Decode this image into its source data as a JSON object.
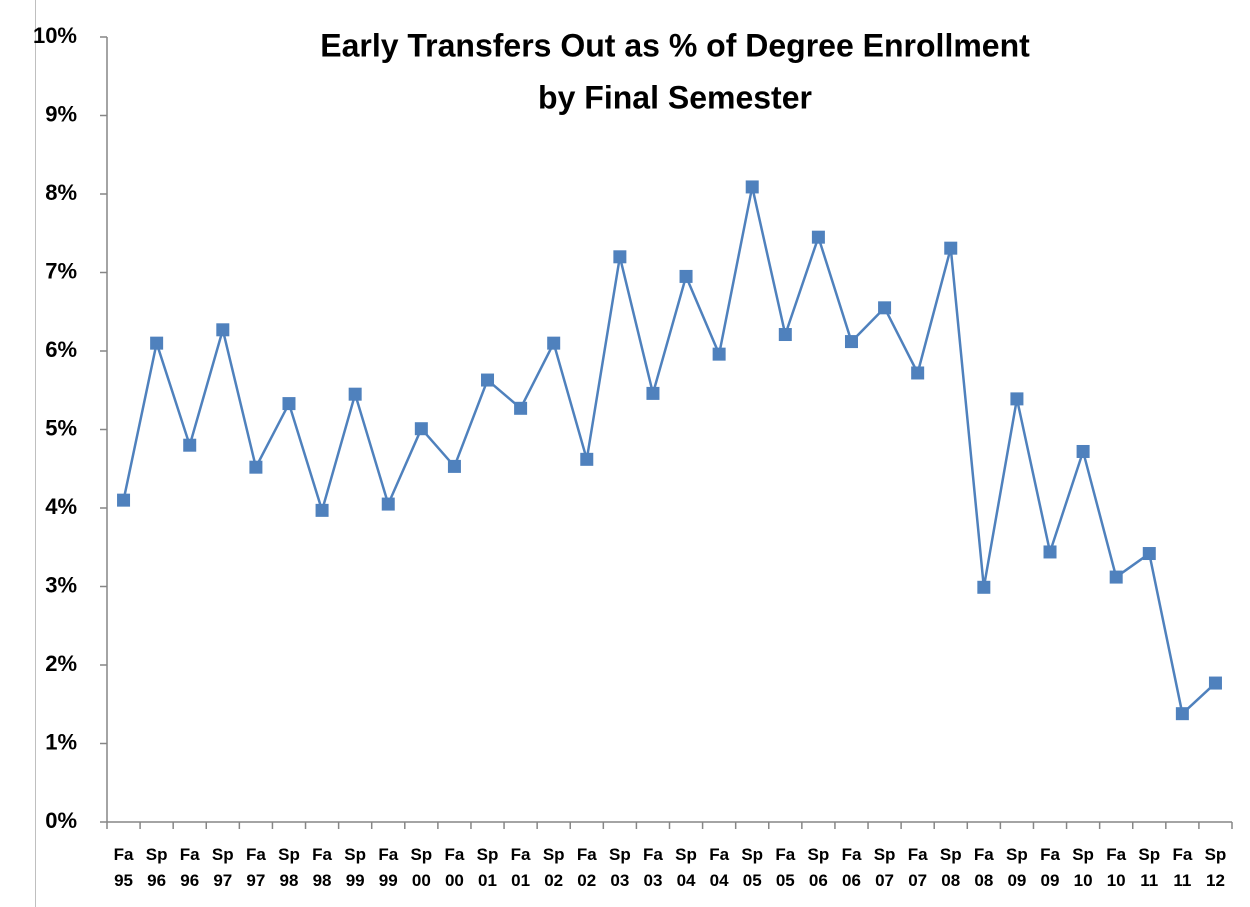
{
  "chart_data": {
    "type": "line",
    "title": [
      "Early Transfers Out as % of Degree Enrollment",
      "by Final Semester"
    ],
    "categories": [
      "Fa 95",
      "Sp 96",
      "Fa 96",
      "Sp 97",
      "Fa 97",
      "Sp 98",
      "Fa 98",
      "Sp 99",
      "Fa 99",
      "Sp 00",
      "Fa 00",
      "Sp 01",
      "Fa 01",
      "Sp 02",
      "Fa 02",
      "Sp 03",
      "Fa 03",
      "Sp 04",
      "Fa 04",
      "Sp 05",
      "Fa 05",
      "Sp 06",
      "Fa 06",
      "Sp 07",
      "Fa 07",
      "Sp 08",
      "Fa 08",
      "Sp 09",
      "Fa 09",
      "Sp 10",
      "Fa 10",
      "Sp 11",
      "Fa 11",
      "Sp 12"
    ],
    "values": [
      4.1,
      6.1,
      4.8,
      6.27,
      4.52,
      5.33,
      3.97,
      5.45,
      4.05,
      5.01,
      4.53,
      5.63,
      5.27,
      6.1,
      4.62,
      7.2,
      5.46,
      6.95,
      5.96,
      8.09,
      6.21,
      7.45,
      6.12,
      6.55,
      5.72,
      7.31,
      2.99,
      5.39,
      3.44,
      4.72,
      3.12,
      3.42,
      1.38,
      1.77
    ],
    "color": "#4f81bd",
    "ylim": [
      0,
      10
    ],
    "yticks": [
      {
        "value": 0,
        "label": "0%"
      },
      {
        "value": 1,
        "label": "1%"
      },
      {
        "value": 2,
        "label": "2%"
      },
      {
        "value": 3,
        "label": "3%"
      },
      {
        "value": 4,
        "label": "4%"
      },
      {
        "value": 5,
        "label": "5%"
      },
      {
        "value": 6,
        "label": "6%"
      },
      {
        "value": 7,
        "label": "7%"
      },
      {
        "value": 8,
        "label": "8%"
      },
      {
        "value": 9,
        "label": "9%"
      },
      {
        "value": 10,
        "label": "10%"
      }
    ],
    "grid": false
  }
}
